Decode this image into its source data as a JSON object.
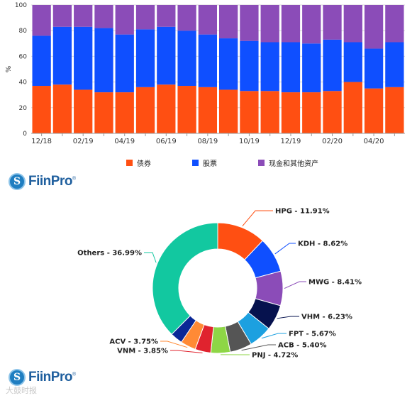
{
  "chart_data": [
    {
      "type": "bar",
      "stacked": true,
      "ylabel": "%",
      "ylim": [
        0,
        100
      ],
      "yticks": [
        0,
        20,
        40,
        60,
        80,
        100
      ],
      "categories": [
        "12/18",
        "01/19",
        "02/19",
        "03/19",
        "04/19",
        "05/19",
        "06/19",
        "07/19",
        "08/19",
        "09/19",
        "10/19",
        "11/19",
        "12/19",
        "01/20",
        "02/20",
        "03/20",
        "04/20",
        "05/20"
      ],
      "xtick_labels": [
        "12/18",
        "",
        "02/19",
        "",
        "04/19",
        "",
        "06/19",
        "",
        "08/19",
        "",
        "10/19",
        "",
        "12/19",
        "",
        "02/20",
        "",
        "04/20",
        ""
      ],
      "series": [
        {
          "name": "债券",
          "color": "#ff4f12",
          "values": [
            37,
            38,
            34,
            32,
            32,
            36,
            38,
            37,
            36,
            34,
            33,
            33,
            32,
            32,
            33,
            40,
            35,
            36
          ]
        },
        {
          "name": "股票",
          "color": "#0f4fff",
          "values": [
            39,
            45,
            49,
            50,
            45,
            45,
            45,
            43,
            41,
            40,
            39,
            38,
            39,
            38,
            40,
            31,
            31,
            35
          ]
        },
        {
          "name": "现金和其他资产",
          "color": "#8b4cb8",
          "values": [
            24,
            17,
            17,
            18,
            23,
            19,
            17,
            20,
            23,
            26,
            28,
            29,
            29,
            30,
            27,
            29,
            34,
            29
          ]
        }
      ],
      "legend_position": "bottom"
    },
    {
      "type": "pie",
      "donut": true,
      "slices": [
        {
          "label": "HPG - 11.91%",
          "value": 11.91,
          "color": "#ff4f12"
        },
        {
          "label": "KDH - 8.62%",
          "value": 8.62,
          "color": "#0f4fff"
        },
        {
          "label": "MWG - 8.41%",
          "value": 8.41,
          "color": "#8b4cb8"
        },
        {
          "label": "VHM - 6.23%",
          "value": 6.23,
          "color": "#06124e"
        },
        {
          "label": "FPT - 5.67%",
          "value": 5.67,
          "color": "#1ca0e0"
        },
        {
          "label": "ACB - 5.40%",
          "value": 5.4,
          "color": "#555555"
        },
        {
          "label": "PNJ - 4.72%",
          "value": 4.72,
          "color": "#8ed646"
        },
        {
          "label": "VNM - 3.85%",
          "value": 3.85,
          "color": "#e0232e"
        },
        {
          "label": "ACV - 3.75%",
          "value": 3.75,
          "color": "#ff8a35"
        },
        {
          "label": "",
          "value": 3.0,
          "color": "#0a2796"
        },
        {
          "label": "Others - 36.99%",
          "value": 36.99,
          "color": "#12c8a0"
        }
      ]
    }
  ],
  "logos": [
    {
      "text": "FiinPro",
      "mark": "S",
      "registered": "®"
    },
    {
      "text": "FiinPro",
      "mark": "S",
      "registered": "®"
    }
  ],
  "watermark": "大鼓时报"
}
